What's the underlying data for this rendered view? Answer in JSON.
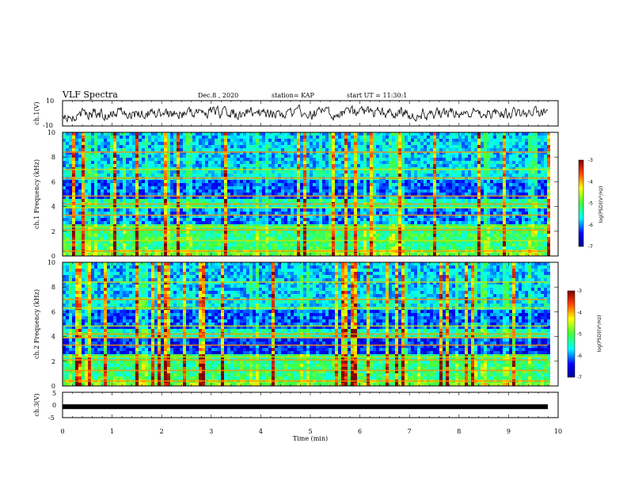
{
  "header": {
    "title": "VLF Spectra",
    "date": "Dec.8 , 2020",
    "station": "station= KAP",
    "start": "start UT = 11:30:1"
  },
  "chart_data": [
    {
      "type": "line",
      "id": "ch1-waveform",
      "ylabel": "ch.1(V)",
      "ylim": [
        -10,
        10
      ],
      "yticks": [
        "10",
        "-10"
      ],
      "xlim": [
        0,
        10
      ]
    },
    {
      "type": "heatmap",
      "id": "ch1-spectrogram",
      "ylabel": "ch.1 Frequency (kHz)",
      "ylim": [
        0,
        10
      ],
      "yticks": [
        "0",
        "2",
        "4",
        "6",
        "8",
        "10"
      ],
      "xlim": [
        0,
        10
      ],
      "colorbar": {
        "label": "log(PSD)(V²/Hz)",
        "range": [
          -7,
          -3
        ],
        "ticks": [
          "-3",
          "-4",
          "-5",
          "-6",
          "-7"
        ]
      }
    },
    {
      "type": "heatmap",
      "id": "ch2-spectrogram",
      "ylabel": "ch.2 Frequency (kHz)",
      "ylim": [
        0,
        10
      ],
      "yticks": [
        "0",
        "2",
        "4",
        "6",
        "8",
        "10"
      ],
      "xlim": [
        0,
        10
      ],
      "colorbar": {
        "label": "log(PSD)(V²/Hz)",
        "range": [
          -7,
          -3
        ],
        "ticks": [
          "-3",
          "-4",
          "-5",
          "-6",
          "-7"
        ]
      }
    },
    {
      "type": "line",
      "id": "ch3-waveform",
      "ylabel": "ch.3(V)",
      "ylim": [
        -5,
        5
      ],
      "yticks": [
        "5",
        "0",
        "-5"
      ],
      "xlim": [
        0,
        10
      ],
      "level": -0.7
    }
  ],
  "xaxis": {
    "label": "Time (min)",
    "ticks": [
      "0",
      "1",
      "2",
      "3",
      "4",
      "5",
      "6",
      "7",
      "8",
      "9",
      "10"
    ]
  },
  "colors": {
    "low": "#00008f",
    "mid_low": "#0050ff",
    "mid": "#00ffff",
    "mid_high": "#80ff00",
    "high": "#ffff00",
    "top": "#ff0000"
  }
}
